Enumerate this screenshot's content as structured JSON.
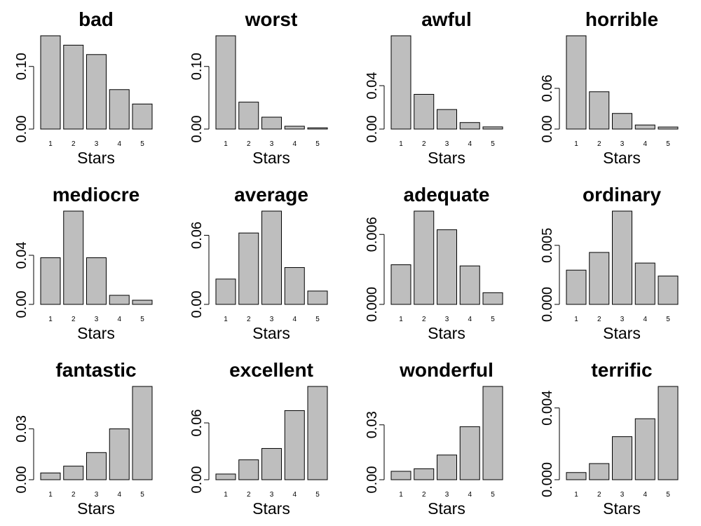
{
  "chart_data": [
    {
      "type": "bar",
      "title": "bad",
      "categories": [
        "1",
        "2",
        "3",
        "4",
        "5"
      ],
      "values": [
        0.149,
        0.134,
        0.119,
        0.063,
        0.04
      ],
      "xlabel": "Stars",
      "ylim": [
        0,
        0.149
      ],
      "yticks": [
        {
          "value": 0,
          "label": "0.00"
        },
        {
          "value": 0.1,
          "label": "0.10"
        }
      ],
      "color": "#bebebe"
    },
    {
      "type": "bar",
      "title": "worst",
      "categories": [
        "1",
        "2",
        "3",
        "4",
        "5"
      ],
      "values": [
        0.149,
        0.043,
        0.019,
        0.0045,
        0.002
      ],
      "xlabel": "Stars",
      "ylim": [
        0,
        0.149
      ],
      "yticks": [
        {
          "value": 0,
          "label": "0.00"
        },
        {
          "value": 0.1,
          "label": "0.10"
        }
      ],
      "color": "#bebebe"
    },
    {
      "type": "bar",
      "title": "awful",
      "categories": [
        "1",
        "2",
        "3",
        "4",
        "5"
      ],
      "values": [
        0.086,
        0.032,
        0.018,
        0.006,
        0.002
      ],
      "xlabel": "Stars",
      "ylim": [
        0,
        0.086
      ],
      "yticks": [
        {
          "value": 0,
          "label": "0.00"
        },
        0.04
      ],
      "color": "#bebebe"
    },
    {
      "type": "bar",
      "title": "horrible",
      "categories": [
        "1",
        "2",
        "3",
        "4",
        "5"
      ],
      "values": [
        0.1375,
        0.055,
        0.023,
        0.006,
        0.003
      ],
      "xlabel": "Stars",
      "ylim": [
        0,
        0.1375
      ],
      "yticks": [
        {
          "value": 0,
          "label": "0.00"
        },
        0.06
      ],
      "color": "#bebebe"
    },
    {
      "type": "bar",
      "title": "mediocre",
      "categories": [
        "1",
        "2",
        "3",
        "4",
        "5"
      ],
      "values": [
        0.038,
        0.076,
        0.038,
        0.0074,
        0.0034
      ],
      "xlabel": "Stars",
      "ylim": [
        0,
        0.076
      ],
      "yticks": [
        {
          "value": 0,
          "label": "0.00"
        },
        0.04
      ],
      "color": "#bebebe"
    },
    {
      "type": "bar",
      "title": "average",
      "categories": [
        "1",
        "2",
        "3",
        "4",
        "5"
      ],
      "values": [
        0.022,
        0.062,
        0.081,
        0.032,
        0.0116
      ],
      "xlabel": "Stars",
      "ylim": [
        0,
        0.081
      ],
      "yticks": [
        {
          "value": 0,
          "label": "0.00"
        },
        0.06
      ],
      "color": "#bebebe"
    },
    {
      "type": "bar",
      "title": "adequate",
      "categories": [
        "1",
        "2",
        "3",
        "4",
        "5"
      ],
      "values": [
        0.0034,
        0.008,
        0.0064,
        0.0033,
        0.001
      ],
      "xlabel": "Stars",
      "ylim": [
        0,
        0.008
      ],
      "yticks": [
        {
          "value": 0,
          "label": "0.000"
        },
        0.006
      ],
      "color": "#bebebe"
    },
    {
      "type": "bar",
      "title": "ordinary",
      "categories": [
        "1",
        "2",
        "3",
        "4",
        "5"
      ],
      "values": [
        0.0029,
        0.0044,
        0.0079,
        0.0035,
        0.0024
      ],
      "xlabel": "Stars",
      "ylim": [
        0,
        0.0079
      ],
      "yticks": [
        {
          "value": 0,
          "label": "0.000"
        },
        0.005
      ],
      "color": "#bebebe"
    },
    {
      "type": "bar",
      "title": "fantastic",
      "categories": [
        "1",
        "2",
        "3",
        "4",
        "5"
      ],
      "values": [
        0.004,
        0.008,
        0.016,
        0.03,
        0.055
      ],
      "xlabel": "Stars",
      "ylim": [
        0,
        0.055
      ],
      "yticks": [
        {
          "value": 0,
          "label": "0.00"
        },
        0.03
      ],
      "color": "#bebebe"
    },
    {
      "type": "bar",
      "title": "excellent",
      "categories": [
        "1",
        "2",
        "3",
        "4",
        "5"
      ],
      "values": [
        0.006,
        0.021,
        0.033,
        0.073,
        0.0985
      ],
      "xlabel": "Stars",
      "ylim": [
        0,
        0.0985
      ],
      "yticks": [
        {
          "value": 0,
          "label": "0.00"
        },
        0.06
      ],
      "color": "#bebebe"
    },
    {
      "type": "bar",
      "title": "wonderful",
      "categories": [
        "1",
        "2",
        "3",
        "4",
        "5"
      ],
      "values": [
        0.0046,
        0.006,
        0.0135,
        0.029,
        0.051
      ],
      "xlabel": "Stars",
      "ylim": [
        0,
        0.051
      ],
      "yticks": [
        {
          "value": 0,
          "label": "0.00"
        },
        0.03
      ],
      "color": "#bebebe"
    },
    {
      "type": "bar",
      "title": "terrific",
      "categories": [
        "1",
        "2",
        "3",
        "4",
        "5"
      ],
      "values": [
        0.0004,
        0.0009,
        0.0024,
        0.0034,
        0.0052
      ],
      "xlabel": "Stars",
      "ylim": [
        0,
        0.0052
      ],
      "yticks": [
        {
          "value": 0,
          "label": "0.000"
        },
        0.004
      ],
      "color": "#bebebe"
    }
  ]
}
